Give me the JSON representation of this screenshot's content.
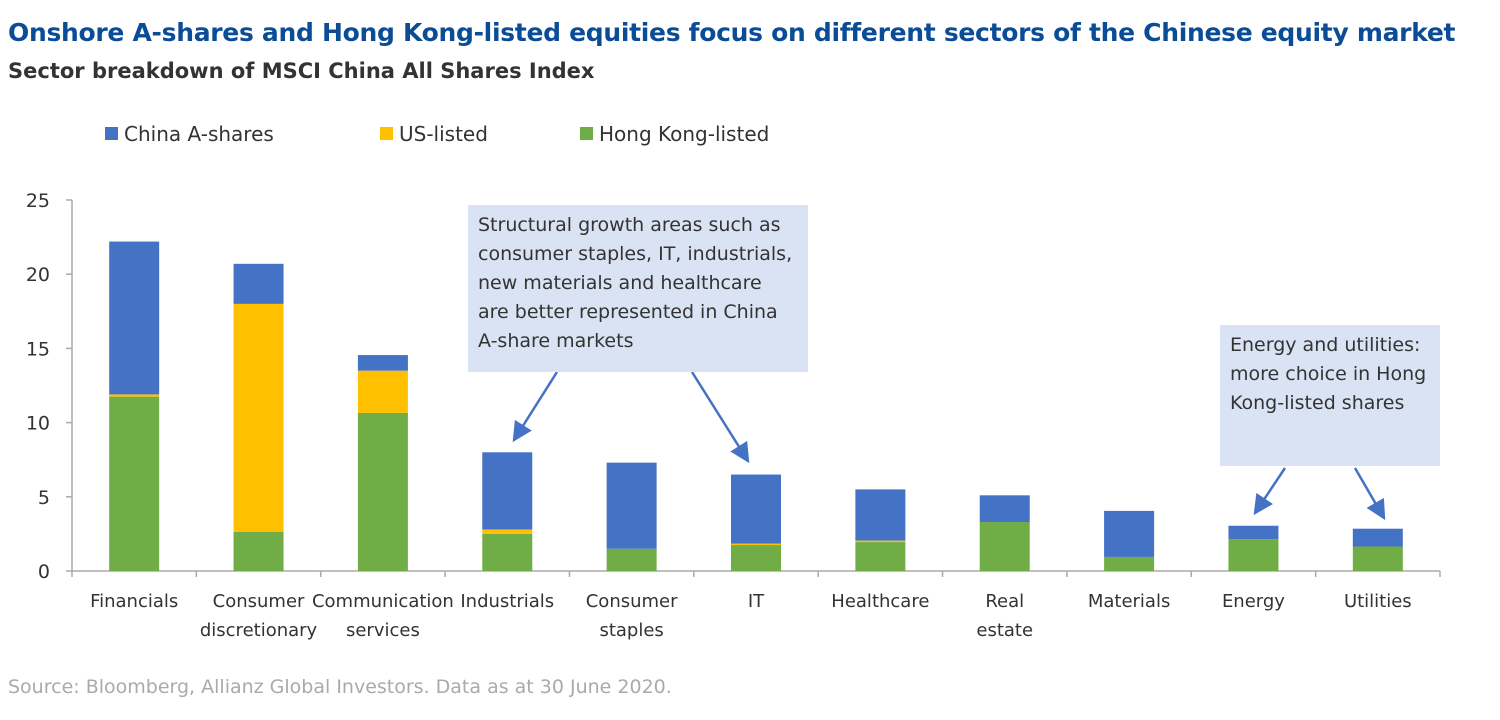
{
  "title": "Onshore A-shares and Hong Kong-listed equities focus on different sectors of the Chinese equity market",
  "subtitle": "Sector breakdown of MSCI China All Shares Index",
  "source": "Source: Bloomberg, Allianz Global Investors. Data as at 30 June 2020.",
  "chart_data": {
    "type": "bar",
    "stacked": true,
    "categories": [
      [
        "Financials"
      ],
      [
        "Consumer",
        "discretionary"
      ],
      [
        "Communication",
        "services"
      ],
      [
        "Industrials"
      ],
      [
        "Consumer",
        "staples"
      ],
      [
        "IT"
      ],
      [
        "Healthcare"
      ],
      [
        "Real",
        "estate"
      ],
      [
        "Materials"
      ],
      [
        "Energy"
      ],
      [
        "Utilities"
      ]
    ],
    "series": [
      {
        "name": "Hong Kong-listed",
        "color": "#70ad47",
        "values": [
          11.75,
          2.65,
          10.65,
          2.5,
          1.5,
          1.75,
          1.95,
          3.3,
          0.95,
          2.15,
          1.65
        ]
      },
      {
        "name": "US-listed",
        "color": "#ffc000",
        "values": [
          0.15,
          15.35,
          2.85,
          0.3,
          0,
          0.1,
          0.1,
          0,
          0,
          0,
          0
        ]
      },
      {
        "name": "China A-shares",
        "color": "#4472c4",
        "values": [
          10.3,
          2.7,
          1.05,
          5.2,
          5.8,
          4.65,
          3.45,
          1.8,
          3.1,
          0.9,
          1.2
        ]
      }
    ],
    "legend_order": [
      "China A-shares",
      "US-listed",
      "Hong Kong-listed"
    ],
    "legend_position": "top-left",
    "yticks": [
      0,
      5,
      10,
      15,
      20,
      25
    ],
    "ylim": [
      0,
      25
    ],
    "grid": false,
    "annotations": [
      "Structural growth areas such as consumer staples, IT, industrials, new materials and healthcare are better represented in China A-share markets",
      "Energy and utilities: more choice in Hong Kong-listed shares"
    ]
  }
}
